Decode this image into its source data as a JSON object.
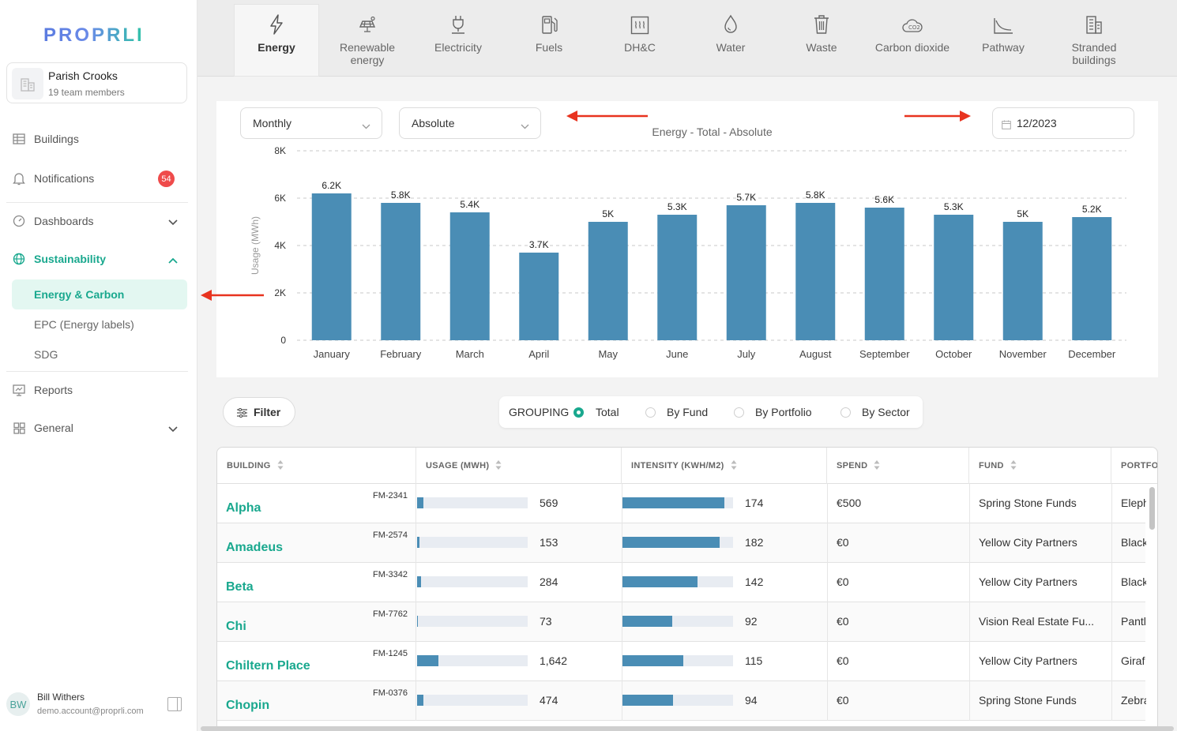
{
  "brand": {
    "logo": "PROPRLI"
  },
  "team": {
    "name": "Parish Crooks",
    "members": "19 team members"
  },
  "nav": {
    "buildings": "Buildings",
    "notifications": "Notifications",
    "notifications_count": "54",
    "dashboards": "Dashboards",
    "sustainability": "Sustainability",
    "sub": {
      "energy": "Energy & Carbon",
      "epc": "EPC (Energy labels)",
      "sdg": "SDG"
    },
    "reports": "Reports",
    "general": "General"
  },
  "user": {
    "initials": "BW",
    "name": "Bill Withers",
    "email": "demo.account@proprli.com"
  },
  "tabs": [
    {
      "label": "Energy",
      "icon": "lightning-icon"
    },
    {
      "label": "Renewable energy",
      "icon": "solar-panel-icon"
    },
    {
      "label": "Electricity",
      "icon": "plug-icon"
    },
    {
      "label": "Fuels",
      "icon": "fuel-pump-icon"
    },
    {
      "label": "DH&C",
      "icon": "heating-icon"
    },
    {
      "label": "Water",
      "icon": "water-drop-icon"
    },
    {
      "label": "Waste",
      "icon": "trash-icon"
    },
    {
      "label": "Carbon dioxide",
      "icon": "co2-cloud-icon"
    },
    {
      "label": "Pathway",
      "icon": "pathway-chart-icon"
    },
    {
      "label": "Stranded buildings",
      "icon": "buildings-icon"
    }
  ],
  "controls": {
    "period": "Monthly",
    "mode": "Absolute",
    "date": "12/2023"
  },
  "chart_data": {
    "type": "bar",
    "title": "Energy - Total - Absolute",
    "ylabel": "Usage (MWh)",
    "xlabel": "",
    "ylim": [
      0,
      8000
    ],
    "yticks": [
      "0",
      "2K",
      "4K",
      "6K",
      "8K"
    ],
    "grid": true,
    "color": "#4a8db5",
    "categories": [
      "January",
      "February",
      "March",
      "April",
      "May",
      "June",
      "July",
      "August",
      "September",
      "October",
      "November",
      "December"
    ],
    "values": [
      6200,
      5800,
      5400,
      3700,
      5000,
      5300,
      5700,
      5800,
      5600,
      5300,
      5000,
      5200
    ],
    "labels": [
      "6.2K",
      "5.8K",
      "5.4K",
      "3.7K",
      "5K",
      "5.3K",
      "5.7K",
      "5.8K",
      "5.6K",
      "5.3K",
      "5K",
      "5.2K"
    ]
  },
  "filter": {
    "label": "Filter"
  },
  "grouping": {
    "label": "GROUPING",
    "options": [
      "Total",
      "By Fund",
      "By Portfolio",
      "By Sector"
    ],
    "selected": "Total"
  },
  "table": {
    "headers": [
      "BUILDING",
      "USAGE (MWH)",
      "INTENSITY (KWH/M2)",
      "SPEND",
      "FUND",
      "PORTFO"
    ],
    "rows": [
      {
        "name": "Alpha",
        "code": "FM-2341",
        "usage": "569",
        "usage_frac": 0.06,
        "intensity": "174",
        "intensity_frac": 0.92,
        "spend": "€500",
        "fund": "Spring Stone Funds",
        "portfolio": "Eleph"
      },
      {
        "name": "Amadeus",
        "code": "FM-2574",
        "usage": "153",
        "usage_frac": 0.02,
        "intensity": "182",
        "intensity_frac": 0.88,
        "spend": "€0",
        "fund": "Yellow City Partners",
        "portfolio": "Black"
      },
      {
        "name": "Beta",
        "code": "FM-3342",
        "usage": "284",
        "usage_frac": 0.035,
        "intensity": "142",
        "intensity_frac": 0.68,
        "spend": "€0",
        "fund": "Yellow City Partners",
        "portfolio": "Black"
      },
      {
        "name": "Chi",
        "code": "FM-7762",
        "usage": "73",
        "usage_frac": 0.01,
        "intensity": "92",
        "intensity_frac": 0.45,
        "spend": "€0",
        "fund": "Vision Real Estate Fu...",
        "portfolio": "Pantl"
      },
      {
        "name": "Chiltern Place",
        "code": "FM-1245",
        "usage": "1,642",
        "usage_frac": 0.19,
        "intensity": "115",
        "intensity_frac": 0.55,
        "spend": "€0",
        "fund": "Yellow City Partners",
        "portfolio": "Giraf"
      },
      {
        "name": "Chopin",
        "code": "FM-0376",
        "usage": "474",
        "usage_frac": 0.055,
        "intensity": "94",
        "intensity_frac": 0.46,
        "spend": "€0",
        "fund": "Spring Stone Funds",
        "portfolio": "Zebra"
      }
    ]
  }
}
